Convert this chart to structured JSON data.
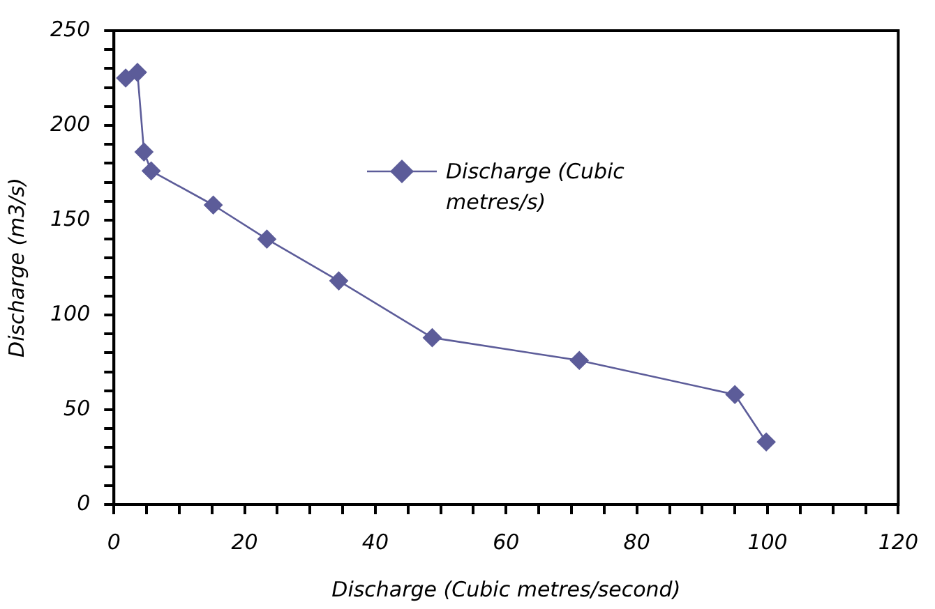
{
  "chart_data": {
    "type": "line",
    "xlabel": "Discharge (Cubic metres/second)",
    "ylabel": "Discharge (m3/s)",
    "x": [
      1.8,
      3.6,
      4.6,
      5.7,
      15.2,
      23.4,
      34.4,
      48.7,
      71.2,
      95,
      99.8
    ],
    "series": [
      {
        "name": "Discharge (Cubic metres/s)",
        "color": "#5c5c99",
        "values": [
          225,
          228,
          186,
          176,
          158,
          140,
          118,
          88,
          76,
          58,
          33
        ]
      }
    ],
    "xlim": [
      0,
      120
    ],
    "xticks": [
      0,
      {
        "value": 5,
        "label": null
      },
      {
        "value": 10,
        "label": null
      },
      {
        "value": 15,
        "label": null
      },
      20,
      {
        "value": 25,
        "label": null
      },
      {
        "value": 30,
        "label": null
      },
      {
        "value": 35,
        "label": null
      },
      40,
      {
        "value": 45,
        "label": null
      },
      {
        "value": 50,
        "label": null
      },
      {
        "value": 55,
        "label": null
      },
      60,
      {
        "value": 65,
        "label": null
      },
      {
        "value": 70,
        "label": null
      },
      {
        "value": 75,
        "label": null
      },
      80,
      {
        "value": 85,
        "label": null
      },
      {
        "value": 90,
        "label": null
      },
      {
        "value": 95,
        "label": null
      },
      100,
      {
        "value": 105,
        "label": null
      },
      {
        "value": 110,
        "label": null
      },
      {
        "value": 115,
        "label": null
      },
      120
    ],
    "ylim": [
      0,
      250
    ],
    "yticks": [
      0,
      {
        "value": 10,
        "label": null
      },
      {
        "value": 20,
        "label": null
      },
      {
        "value": 30,
        "label": null
      },
      {
        "value": 40,
        "label": null
      },
      50,
      {
        "value": 60,
        "label": null
      },
      {
        "value": 70,
        "label": null
      },
      {
        "value": 80,
        "label": null
      },
      {
        "value": 90,
        "label": null
      },
      100,
      {
        "value": 110,
        "label": null
      },
      {
        "value": 120,
        "label": null
      },
      {
        "value": 130,
        "label": null
      },
      {
        "value": 140,
        "label": null
      },
      150,
      {
        "value": 160,
        "label": null
      },
      {
        "value": 170,
        "label": null
      },
      {
        "value": 180,
        "label": null
      },
      {
        "value": 190,
        "label": null
      },
      200,
      {
        "value": 210,
        "label": null
      },
      {
        "value": 220,
        "label": null
      },
      {
        "value": 230,
        "label": null
      },
      {
        "value": 240,
        "label": null
      },
      250
    ],
    "grid": false,
    "legend": "top right",
    "marker": "diamond",
    "line_style": "solid"
  }
}
